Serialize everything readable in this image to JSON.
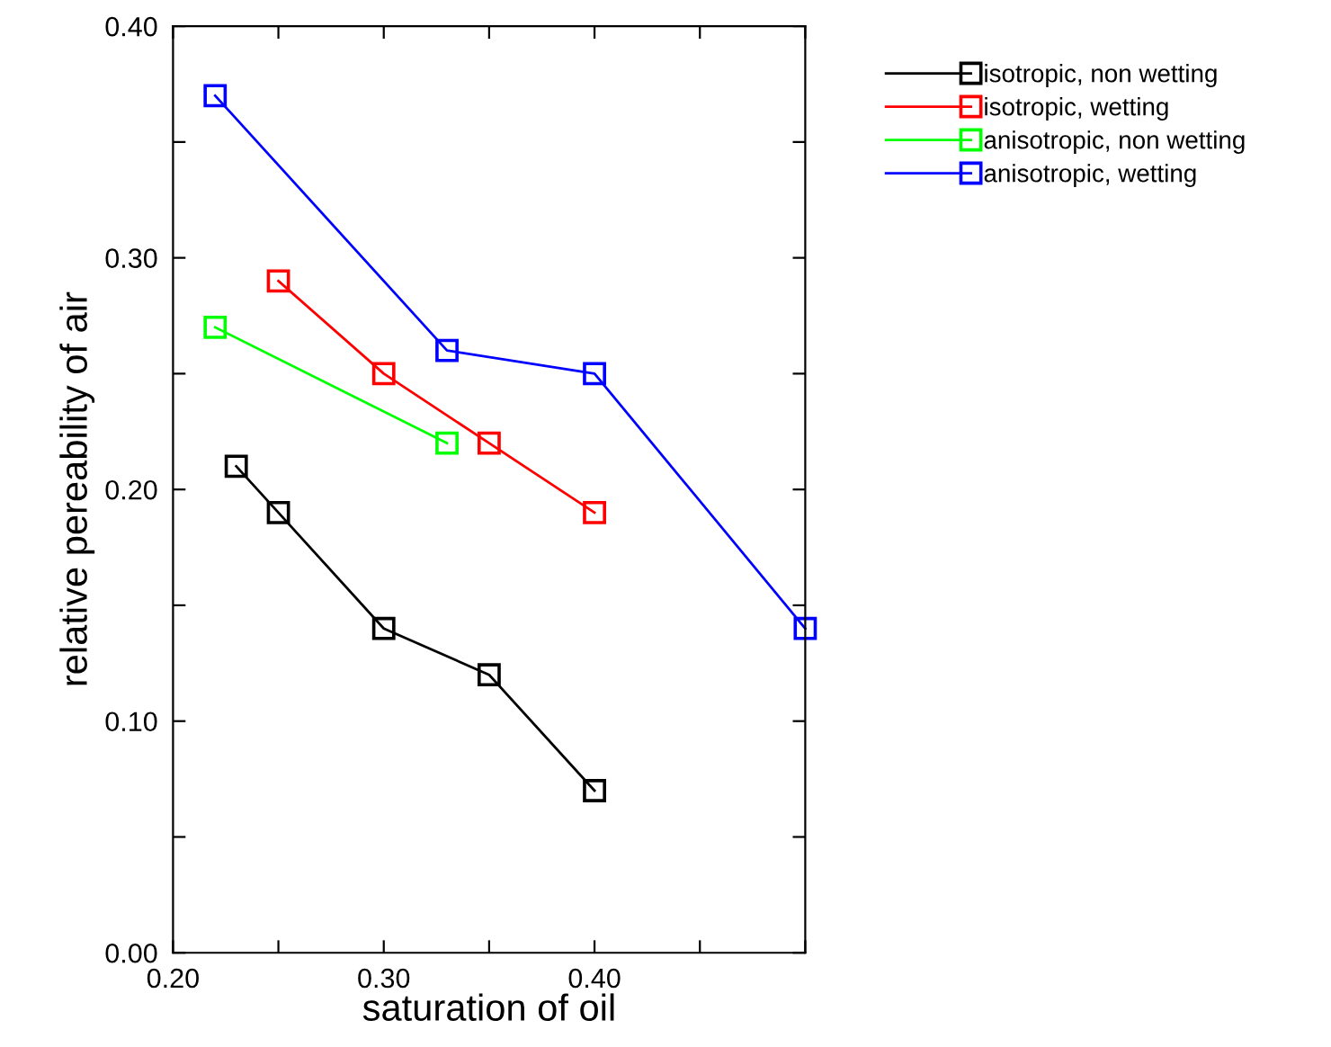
{
  "chart_data": {
    "type": "line",
    "xlabel": "saturation of oil",
    "ylabel": "relative pereability of air",
    "xlim": [
      0.2,
      0.5
    ],
    "ylim": [
      0,
      0.4
    ],
    "xticks": [
      {
        "value": 0.2,
        "label": "0.20"
      },
      {
        "value": 0.25,
        "label": null
      },
      {
        "value": 0.3,
        "label": "0.30"
      },
      {
        "value": 0.35,
        "label": null
      },
      {
        "value": 0.4,
        "label": "0.40"
      },
      {
        "value": 0.45,
        "label": null
      },
      {
        "value": 0.5,
        "label": null
      }
    ],
    "yticks": [
      {
        "value": 0,
        "label": "0.00"
      },
      {
        "value": 0.05,
        "label": null
      },
      {
        "value": 0.1,
        "label": "0.10"
      },
      {
        "value": 0.15,
        "label": null
      },
      {
        "value": 0.2,
        "label": "0.20"
      },
      {
        "value": 0.25,
        "label": null
      },
      {
        "value": 0.3,
        "label": "0.30"
      },
      {
        "value": 0.35,
        "label": null
      },
      {
        "value": 0.4,
        "label": "0.40"
      }
    ],
    "marker": "square",
    "line_style": "solid",
    "grid": false,
    "legend": "right",
    "series": [
      {
        "name": "isotropic, non wetting",
        "color": "#000000",
        "x": [
          0.23,
          0.25,
          0.3,
          0.35,
          0.4
        ],
        "values": [
          0.21,
          0.19,
          0.14,
          0.12,
          0.07
        ]
      },
      {
        "name": "isotropic, wetting",
        "color": "#ff0000",
        "x": [
          0.25,
          0.3,
          0.35,
          0.4
        ],
        "values": [
          0.29,
          0.25,
          0.22,
          0.19
        ]
      },
      {
        "name": "anisotropic, non wetting",
        "color": "#00ff00",
        "x": [
          0.22,
          0.33
        ],
        "values": [
          0.27,
          0.22
        ]
      },
      {
        "name": "anisotropic, wetting",
        "color": "#0000ff",
        "x": [
          0.22,
          0.33,
          0.4,
          0.5
        ],
        "values": [
          0.37,
          0.26,
          0.25,
          0.14
        ]
      }
    ]
  }
}
